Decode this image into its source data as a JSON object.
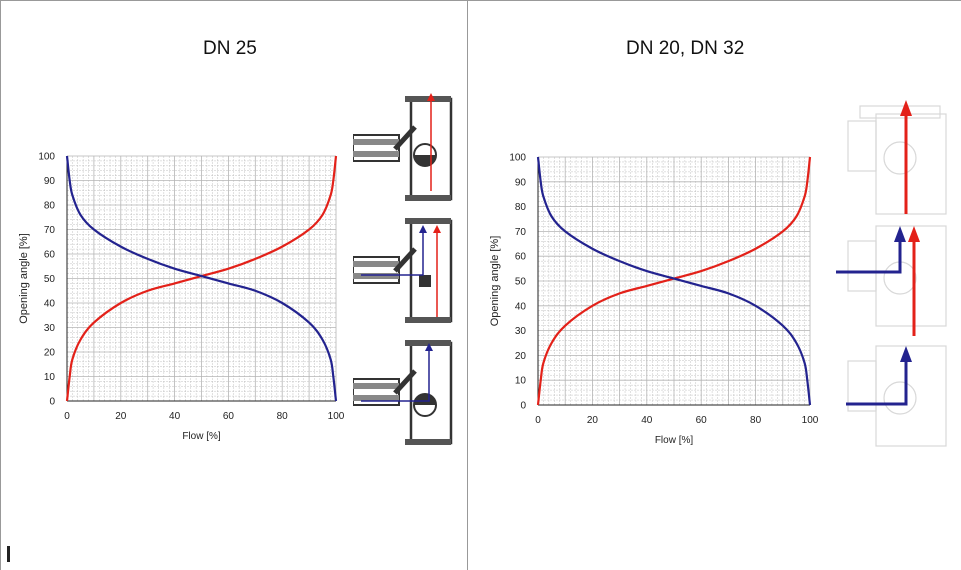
{
  "colors": {
    "red": "#e32119",
    "blue": "#23238f",
    "grid": "#b4b4b4",
    "axis": "#222222"
  },
  "panels": [
    {
      "title": "DN 25"
    },
    {
      "title": "DN 20, DN 32"
    }
  ],
  "chart_data": [
    {
      "type": "line",
      "title": "DN 25",
      "xlabel": "Flow [%]",
      "ylabel": "Opening angle [%]",
      "xlim": [
        0,
        100
      ],
      "ylim": [
        0,
        100
      ],
      "xticks": [
        0,
        20,
        40,
        60,
        80,
        100
      ],
      "yticks": [
        0,
        10,
        20,
        30,
        40,
        50,
        60,
        70,
        80,
        90,
        100
      ],
      "grid": true,
      "series": [
        {
          "color": "#e32119",
          "x": [
            0,
            1,
            2,
            5,
            10,
            20,
            30,
            40,
            50,
            60,
            70,
            80,
            90,
            95,
            98,
            99,
            100
          ],
          "y": [
            0,
            10,
            17,
            25,
            32,
            40,
            45,
            48,
            51,
            54,
            58,
            63,
            70,
            76,
            84,
            90,
            100
          ]
        },
        {
          "color": "#23238f",
          "x": [
            0,
            1,
            2,
            5,
            10,
            20,
            30,
            40,
            50,
            60,
            70,
            80,
            90,
            95,
            98,
            99,
            100
          ],
          "y": [
            100,
            90,
            84,
            76,
            70,
            63,
            58,
            54,
            51,
            48,
            45,
            40,
            32,
            25,
            17,
            10,
            0
          ]
        }
      ]
    },
    {
      "type": "line",
      "title": "DN 20, DN 32",
      "xlabel": "Flow [%]",
      "ylabel": "Opening angle [%]",
      "xlim": [
        0,
        100
      ],
      "ylim": [
        0,
        100
      ],
      "xticks": [
        0,
        20,
        40,
        60,
        80,
        100
      ],
      "yticks": [
        0,
        10,
        20,
        30,
        40,
        50,
        60,
        70,
        80,
        90,
        100
      ],
      "grid": true,
      "series": [
        {
          "color": "#e32119",
          "x": [
            0,
            1,
            2,
            5,
            10,
            20,
            30,
            40,
            50,
            60,
            70,
            80,
            90,
            95,
            98,
            99,
            100
          ],
          "y": [
            0,
            10,
            17,
            25,
            32,
            40,
            45,
            48,
            51,
            54,
            58,
            63,
            70,
            76,
            84,
            90,
            100
          ]
        },
        {
          "color": "#23238f",
          "x": [
            0,
            1,
            2,
            5,
            10,
            20,
            30,
            40,
            50,
            60,
            70,
            80,
            90,
            95,
            98,
            99,
            100
          ],
          "y": [
            100,
            90,
            84,
            76,
            70,
            63,
            58,
            54,
            51,
            48,
            45,
            40,
            32,
            25,
            17,
            10,
            0
          ]
        }
      ]
    }
  ]
}
